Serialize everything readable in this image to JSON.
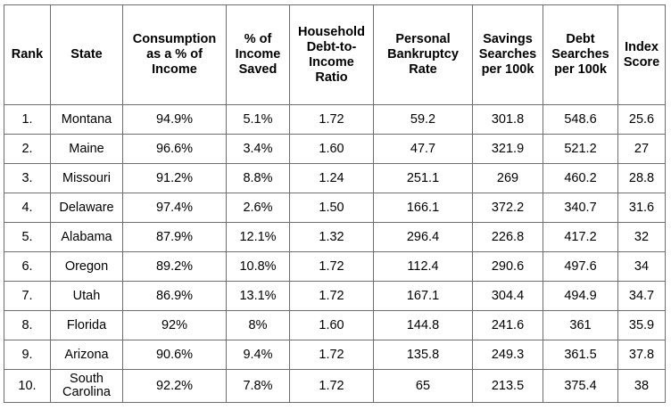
{
  "table": {
    "headers": [
      "Rank",
      "State",
      "Consumption as a % of Income",
      "% of Income Saved",
      "Household Debt-to-Income Ratio",
      "Personal Bankruptcy Rate",
      "Savings Searches per 100k",
      "Debt Searches per 100k",
      "Index Score"
    ],
    "rows": [
      [
        "1.",
        "Montana",
        "94.9%",
        "5.1%",
        "1.72",
        "59.2",
        "301.8",
        "548.6",
        "25.6"
      ],
      [
        "2.",
        "Maine",
        "96.6%",
        "3.4%",
        "1.60",
        "47.7",
        "321.9",
        "521.2",
        "27"
      ],
      [
        "3.",
        "Missouri",
        "91.2%",
        "8.8%",
        "1.24",
        "251.1",
        "269",
        "460.2",
        "28.8"
      ],
      [
        "4.",
        "Delaware",
        "97.4%",
        "2.6%",
        "1.50",
        "166.1",
        "372.2",
        "340.7",
        "31.6"
      ],
      [
        "5.",
        "Alabama",
        "87.9%",
        "12.1%",
        "1.32",
        "296.4",
        "226.8",
        "417.2",
        "32"
      ],
      [
        "6.",
        "Oregon",
        "89.2%",
        "10.8%",
        "1.72",
        "112.4",
        "290.6",
        "497.6",
        "34"
      ],
      [
        "7.",
        "Utah",
        "86.9%",
        "13.1%",
        "1.72",
        "167.1",
        "304.4",
        "494.9",
        "34.7"
      ],
      [
        "8.",
        "Florida",
        "92%",
        "8%",
        "1.60",
        "144.8",
        "241.6",
        "361",
        "35.9"
      ],
      [
        "9.",
        "Arizona",
        "90.6%",
        "9.4%",
        "1.72",
        "135.8",
        "249.3",
        "361.5",
        "37.8"
      ],
      [
        "10.",
        "South Carolina",
        "92.2%",
        "7.8%",
        "1.72",
        "65",
        "213.5",
        "375.4",
        "38"
      ]
    ]
  }
}
